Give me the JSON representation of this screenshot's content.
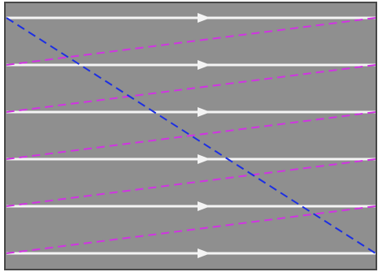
{
  "diagram": {
    "colors": {
      "frame_background": "#8f8f8f",
      "frame_border": "#474747",
      "scan_line": "#f4f4f4",
      "retrace_line": "#d133e3",
      "vertical_retrace_line": "#1c2fe3"
    },
    "scan_lines_count": 6,
    "retrace_segments_count": 5,
    "scan_line_direction": "left-to-right",
    "retrace_style": "dashed",
    "vertical_retrace_style": "dashed"
  }
}
